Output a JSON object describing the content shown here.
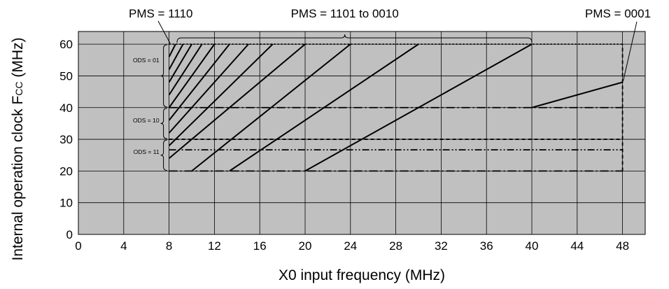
{
  "chart_data": {
    "type": "line",
    "xlabel": "X0 input frequency (MHz)",
    "ylabel": "Internal operation clock Fcc (MHz)",
    "ylabel_main": "Internal operation clock F",
    "ylabel_sub": "CC",
    "ylabel_unit": " (MHz)",
    "xlim": [
      0,
      50
    ],
    "ylim": [
      0,
      64
    ],
    "xticks": [
      0,
      4,
      8,
      12,
      16,
      20,
      24,
      28,
      32,
      36,
      40,
      44,
      48
    ],
    "yticks": [
      0,
      10,
      20,
      30,
      40,
      50,
      60
    ],
    "grid": true,
    "background": "#c0c0c0",
    "series": [
      {
        "x": [
          8,
          8.57
        ],
        "y": [
          56,
          60
        ]
      },
      {
        "x": [
          8,
          9.23
        ],
        "y": [
          52,
          60
        ]
      },
      {
        "x": [
          8,
          10
        ],
        "y": [
          48,
          60
        ]
      },
      {
        "x": [
          8,
          10.9
        ],
        "y": [
          44,
          60
        ]
      },
      {
        "x": [
          8,
          12
        ],
        "y": [
          40,
          60
        ]
      },
      {
        "x": [
          8,
          13.33
        ],
        "y": [
          36,
          60
        ]
      },
      {
        "x": [
          8,
          15
        ],
        "y": [
          32,
          60
        ]
      },
      {
        "x": [
          8,
          17.14
        ],
        "y": [
          28,
          60
        ]
      },
      {
        "x": [
          8,
          20
        ],
        "y": [
          24,
          60
        ]
      },
      {
        "x": [
          10,
          24
        ],
        "y": [
          20,
          60
        ]
      },
      {
        "x": [
          13.33,
          30
        ],
        "y": [
          20,
          60
        ]
      },
      {
        "x": [
          20,
          40
        ],
        "y": [
          20,
          60
        ]
      },
      {
        "x": [
          40,
          48
        ],
        "y": [
          40,
          48
        ]
      }
    ],
    "ods_regions": [
      {
        "label": "ODS = 01",
        "bracket_y": [
          40,
          60
        ],
        "label_y": 55
      },
      {
        "label": "ODS = 10",
        "bracket_y": [
          30,
          40
        ],
        "label_y": 36
      },
      {
        "label": "ODS = 11",
        "bracket_y": [
          20,
          30
        ],
        "label_y": 26
      }
    ],
    "boundaries": [
      {
        "x": [
          8,
          48
        ],
        "y": [
          60,
          60
        ],
        "style": "dotted"
      },
      {
        "x": [
          8,
          48
        ],
        "y": [
          40,
          40
        ],
        "style": "dashdot"
      },
      {
        "x": [
          8,
          48
        ],
        "y": [
          30,
          30
        ],
        "style": "dashed"
      },
      {
        "x": [
          8,
          48
        ],
        "y": [
          26.67,
          26.67
        ],
        "style": "dashdotdot"
      },
      {
        "x": [
          8,
          48
        ],
        "y": [
          20,
          20
        ],
        "style": "dashdot"
      },
      {
        "x": [
          48,
          48
        ],
        "y": [
          20,
          60
        ],
        "style": "dashed"
      }
    ],
    "annotations": [
      {
        "text": "PMS = 1110",
        "target_x": 8.1,
        "target_y": 60
      },
      {
        "text": "PMS = 1101 to 0010",
        "span_x": [
          8.7,
          40
        ]
      },
      {
        "text": "PMS = 0001",
        "target_x": 48,
        "target_y": 48
      }
    ]
  }
}
